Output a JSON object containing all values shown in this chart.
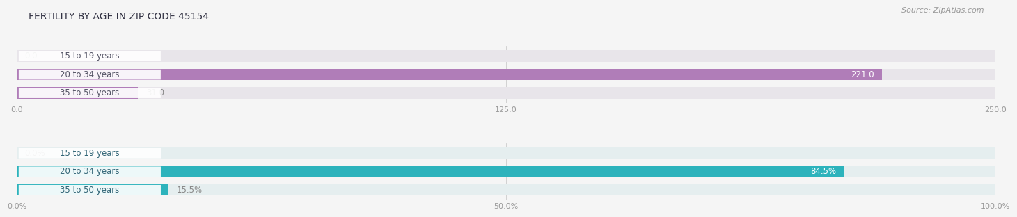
{
  "title": "FERTILITY BY AGE IN ZIP CODE 45154",
  "source": "Source: ZipAtlas.com",
  "top_chart": {
    "categories": [
      "15 to 19 years",
      "20 to 34 years",
      "35 to 50 years"
    ],
    "values": [
      0.0,
      221.0,
      31.0
    ],
    "xlim": [
      0,
      250
    ],
    "xticks": [
      0.0,
      125.0,
      250.0
    ],
    "xtick_labels": [
      "0.0",
      "125.0",
      "250.0"
    ],
    "value_labels": [
      "0.0",
      "221.0",
      "31.0"
    ],
    "bar_color": "#b07db8",
    "bar_light_color": "#d4aedd",
    "bar_bg_color": "#e8e5ea",
    "label_pill_bg": "#ffffff",
    "label_text_color": "#555566"
  },
  "bottom_chart": {
    "categories": [
      "15 to 19 years",
      "20 to 34 years",
      "35 to 50 years"
    ],
    "values": [
      0.0,
      84.5,
      15.5
    ],
    "xlim": [
      0,
      100
    ],
    "xticks": [
      0.0,
      50.0,
      100.0
    ],
    "xtick_labels": [
      "0.0%",
      "50.0%",
      "100.0%"
    ],
    "value_labels": [
      "0.0%",
      "84.5%",
      "15.5%"
    ],
    "bar_color": "#2db3bc",
    "bar_light_color": "#7dd5da",
    "bar_bg_color": "#e5eeef",
    "label_pill_bg": "#ffffff",
    "label_text_color": "#336677"
  },
  "bg_color": "#f5f5f5",
  "title_color": "#333344",
  "title_fontsize": 10,
  "source_fontsize": 8,
  "label_fontsize": 8.5,
  "tick_fontsize": 8,
  "category_fontsize": 8.5
}
